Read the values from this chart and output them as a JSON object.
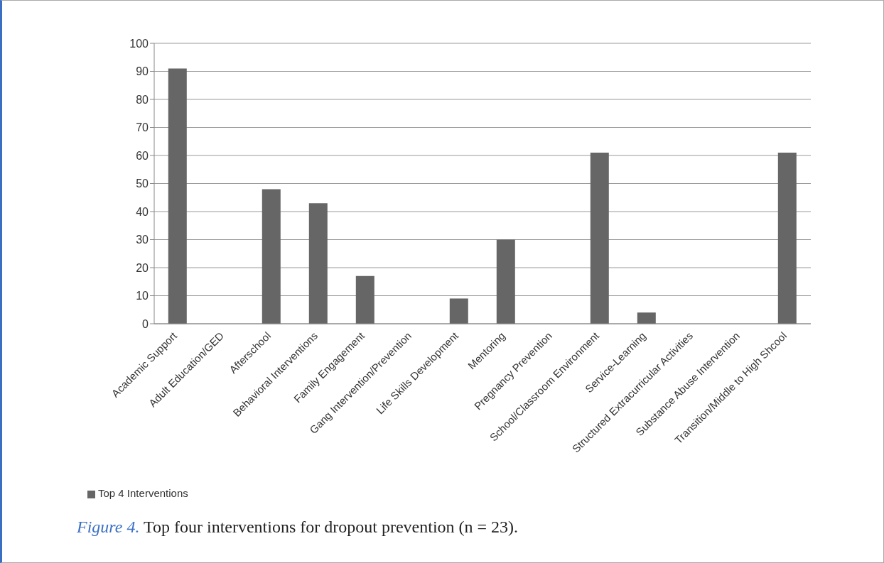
{
  "chart_data": {
    "type": "bar",
    "categories": [
      "Academic Support",
      "Adult Education/GED",
      "Afterschool",
      "Behavioral Interventions",
      "Family Engagement",
      "Gang Intervention/Prevention",
      "Life Skills Development",
      "Mentoring",
      "Pregnancy Prevention",
      "School/Classroom Environment",
      "Service-Learning",
      "Structured Extracurricular Activities",
      "Substance Abuse Intervention",
      "Transition/Middle to High Shcool"
    ],
    "series": [
      {
        "name": "Top 4 Interventions",
        "color": "#666666",
        "values": [
          91,
          0,
          48,
          43,
          17,
          0,
          9,
          30,
          0,
          61,
          4,
          0,
          0,
          61
        ]
      }
    ],
    "ylim": [
      0,
      100
    ],
    "yticks": [
      0,
      10,
      20,
      30,
      40,
      50,
      60,
      70,
      80,
      90,
      100
    ],
    "grid": "y",
    "legend": "bottom left",
    "annotations": [
      "Figure 4. Top four interventions for dropout prevention (n = 23)."
    ]
  }
}
